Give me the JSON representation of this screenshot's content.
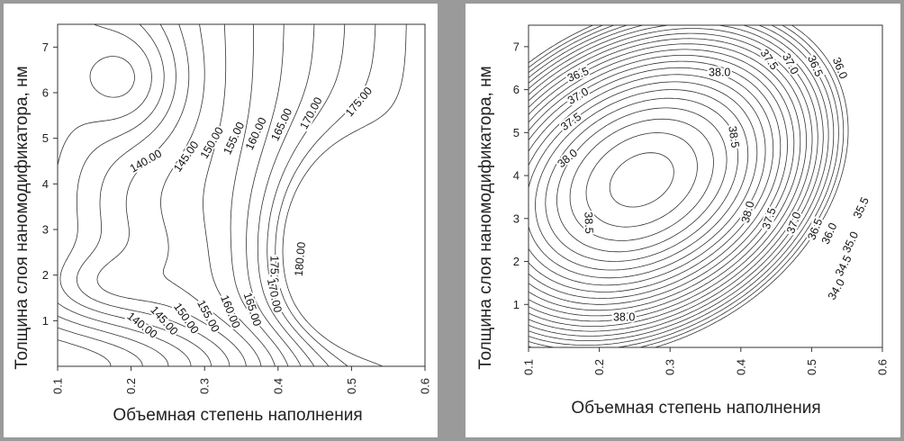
{
  "chart_data": [
    {
      "type": "contour",
      "xlabel": "Объемная степень наполнения",
      "ylabel": "Толщина слоя наномодификатора, нм",
      "xlim": [
        0.1,
        0.6
      ],
      "ylim": [
        0,
        7.5
      ],
      "x_ticks": [
        "0.1",
        "0.2",
        "0.3",
        "0.4",
        "0.5",
        "0.6"
      ],
      "y_ticks": [
        "1",
        "2",
        "3",
        "4",
        "5",
        "6",
        "7"
      ],
      "grid": false,
      "contour_labels": [
        {
          "text": "140.00",
          "x": 0.22,
          "y": 4.5,
          "angle": -30
        },
        {
          "text": "145.00",
          "x": 0.275,
          "y": 4.6,
          "angle": -55
        },
        {
          "text": "150.00",
          "x": 0.31,
          "y": 4.9,
          "angle": -60
        },
        {
          "text": "155.00",
          "x": 0.34,
          "y": 5.0,
          "angle": -65
        },
        {
          "text": "160.00",
          "x": 0.37,
          "y": 5.1,
          "angle": -65
        },
        {
          "text": "165.00",
          "x": 0.405,
          "y": 5.3,
          "angle": -65
        },
        {
          "text": "170.00",
          "x": 0.445,
          "y": 5.55,
          "angle": -62
        },
        {
          "text": "175.00",
          "x": 0.51,
          "y": 5.8,
          "angle": -50
        },
        {
          "text": "175.00",
          "x": 0.395,
          "y": 2.05,
          "angle": 90
        },
        {
          "text": "180.00",
          "x": 0.43,
          "y": 2.35,
          "angle": -85
        },
        {
          "text": "140.00",
          "x": 0.215,
          "y": 0.9,
          "angle": 38
        },
        {
          "text": "145.00",
          "x": 0.245,
          "y": 1.0,
          "angle": 48
        },
        {
          "text": "150.00",
          "x": 0.275,
          "y": 1.05,
          "angle": 55
        },
        {
          "text": "155.00",
          "x": 0.305,
          "y": 1.1,
          "angle": 62
        },
        {
          "text": "160.00",
          "x": 0.335,
          "y": 1.2,
          "angle": 68
        },
        {
          "text": "165.00",
          "x": 0.365,
          "y": 1.25,
          "angle": 72
        },
        {
          "text": "170.00",
          "x": 0.395,
          "y": 1.55,
          "angle": 78
        }
      ]
    },
    {
      "type": "contour",
      "xlabel": "Объемная степень наполнения",
      "ylabel": "Толщина слоя наномодификатора, нм",
      "xlim": [
        0.1,
        0.6
      ],
      "ylim": [
        0,
        7.5
      ],
      "x_ticks": [
        "0.1",
        "0.2",
        "0.3",
        "0.4",
        "0.5",
        "0.6"
      ],
      "y_ticks": [
        "1",
        "2",
        "3",
        "4",
        "5",
        "6",
        "7"
      ],
      "grid": false,
      "contour_labels": [
        {
          "text": "36.5",
          "x": 0.17,
          "y": 6.35,
          "angle": -22
        },
        {
          "text": "37.0",
          "x": 0.17,
          "y": 5.85,
          "angle": -30
        },
        {
          "text": "37.5",
          "x": 0.16,
          "y": 5.25,
          "angle": -35
        },
        {
          "text": "38.0",
          "x": 0.155,
          "y": 4.4,
          "angle": -40
        },
        {
          "text": "38.0",
          "x": 0.37,
          "y": 6.4,
          "angle": 0
        },
        {
          "text": "37.5",
          "x": 0.44,
          "y": 6.7,
          "angle": 55
        },
        {
          "text": "37.0",
          "x": 0.47,
          "y": 6.6,
          "angle": 62
        },
        {
          "text": "36.5",
          "x": 0.505,
          "y": 6.55,
          "angle": 66
        },
        {
          "text": "36.0",
          "x": 0.54,
          "y": 6.5,
          "angle": 68
        },
        {
          "text": "38.5",
          "x": 0.39,
          "y": 4.9,
          "angle": 82
        },
        {
          "text": "38.5",
          "x": 0.185,
          "y": 2.9,
          "angle": 88
        },
        {
          "text": "38.0",
          "x": 0.41,
          "y": 3.15,
          "angle": -75
        },
        {
          "text": "37.5",
          "x": 0.44,
          "y": 3.0,
          "angle": -72
        },
        {
          "text": "37.0",
          "x": 0.475,
          "y": 2.9,
          "angle": -70
        },
        {
          "text": "36.5",
          "x": 0.505,
          "y": 2.75,
          "angle": -68
        },
        {
          "text": "36.0",
          "x": 0.525,
          "y": 2.65,
          "angle": -66
        },
        {
          "text": "35.5",
          "x": 0.57,
          "y": 3.25,
          "angle": -65
        },
        {
          "text": "35.0",
          "x": 0.555,
          "y": 2.45,
          "angle": -64
        },
        {
          "text": "34.5",
          "x": 0.545,
          "y": 1.9,
          "angle": -62
        },
        {
          "text": "34.0",
          "x": 0.535,
          "y": 1.35,
          "angle": -60
        },
        {
          "text": "38.0",
          "x": 0.235,
          "y": 0.7,
          "angle": 0
        }
      ]
    }
  ]
}
